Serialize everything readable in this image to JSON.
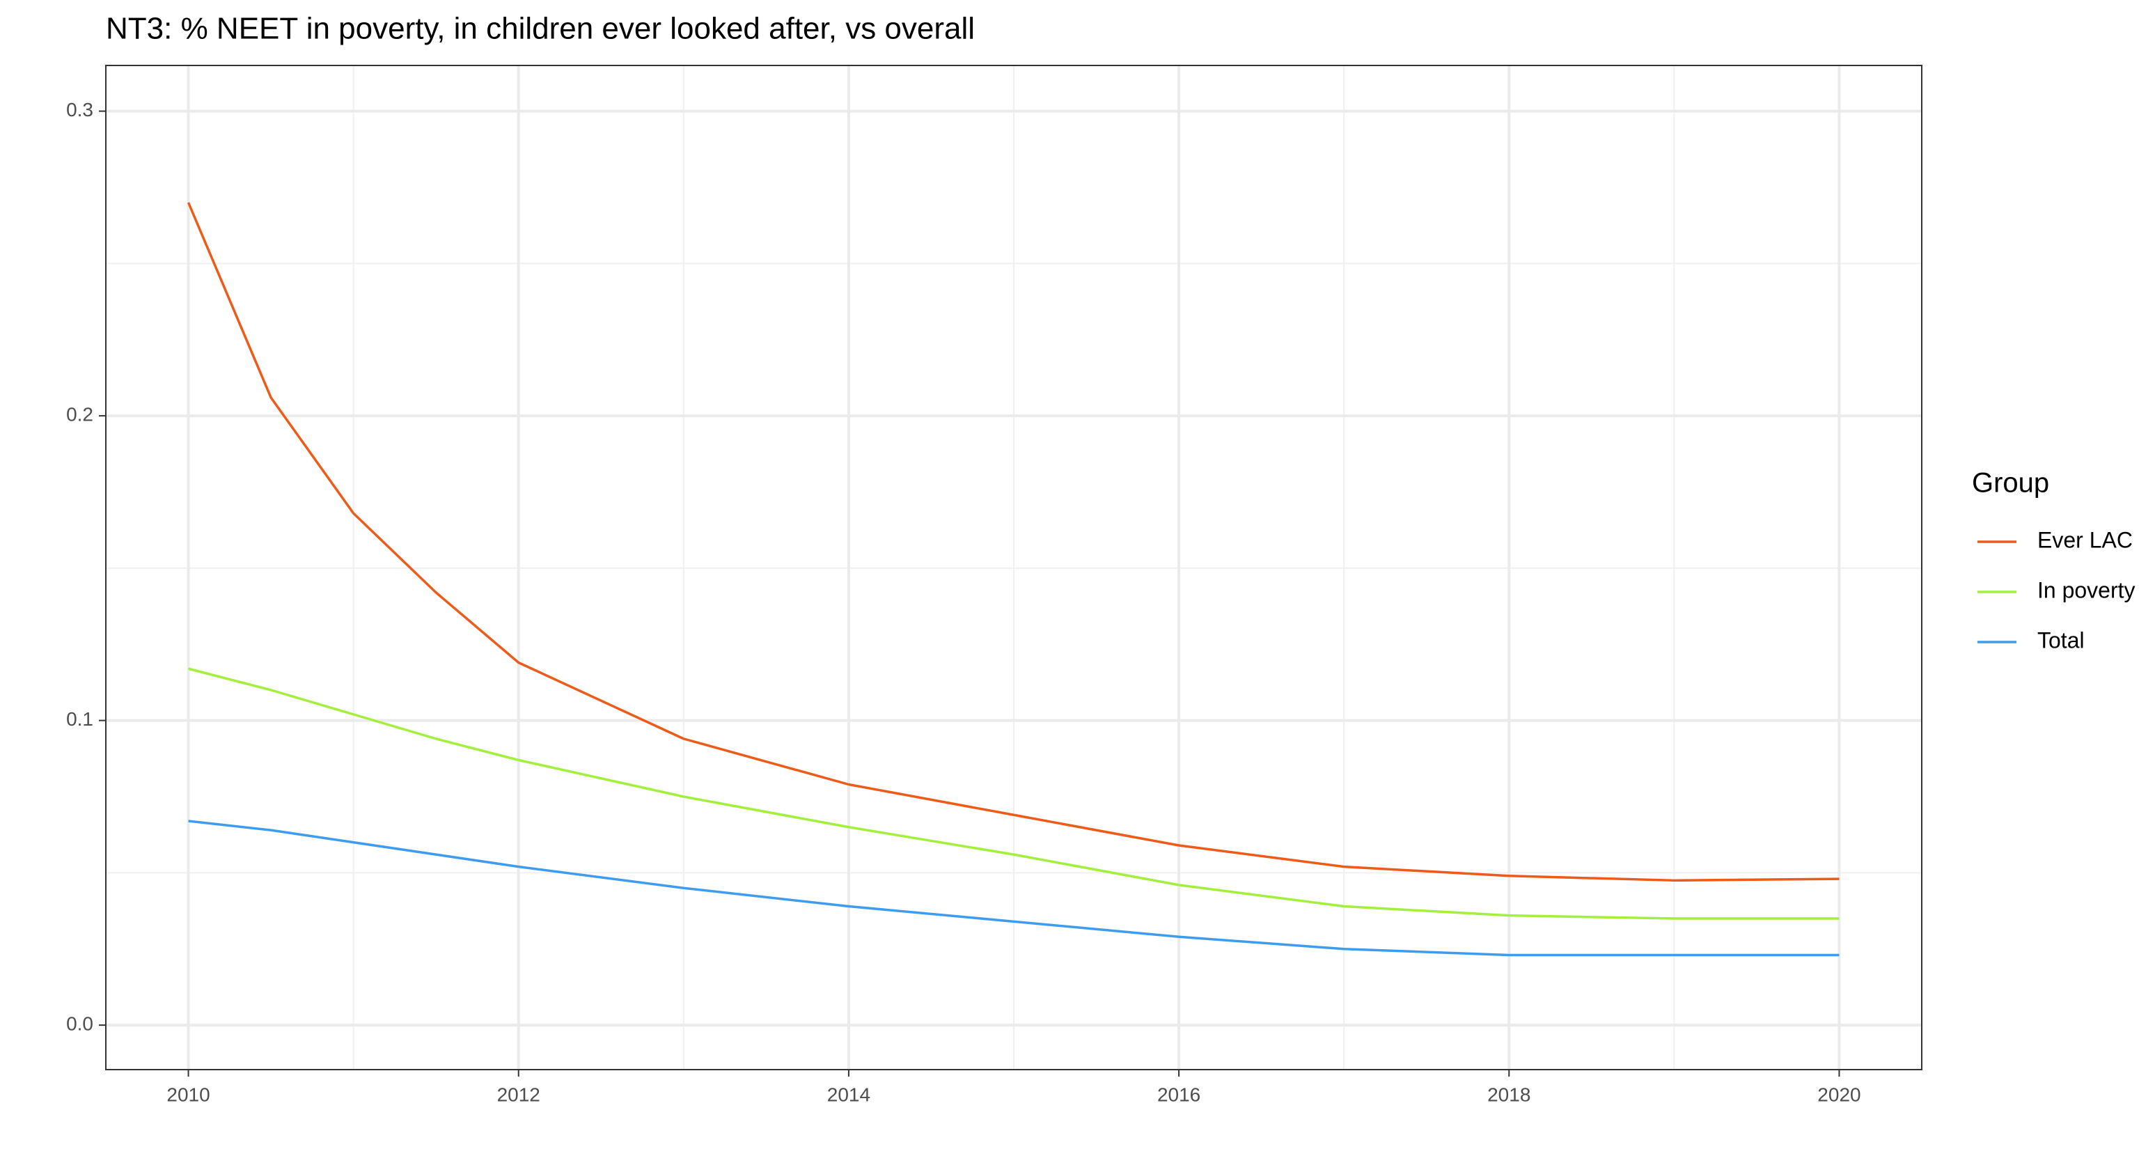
{
  "chart_data": {
    "type": "line",
    "title": "NT3: % NEET in poverty, in children ever looked after, vs overall",
    "x": [
      2010,
      2010.5,
      2011,
      2011.5,
      2012,
      2013,
      2014,
      2015,
      2016,
      2017,
      2018,
      2019,
      2020
    ],
    "series": [
      {
        "name": "Ever LAC",
        "color": "#ee5a17",
        "values": [
          0.27,
          0.206,
          0.168,
          0.142,
          0.119,
          0.094,
          0.079,
          0.069,
          0.059,
          0.052,
          0.049,
          0.0475,
          0.048
        ]
      },
      {
        "name": "In poverty",
        "color": "#a3f03c",
        "values": [
          0.117,
          0.11,
          0.102,
          0.094,
          0.087,
          0.075,
          0.065,
          0.056,
          0.046,
          0.039,
          0.036,
          0.035,
          0.035
        ]
      },
      {
        "name": "Total",
        "color": "#3d9cf0",
        "values": [
          0.067,
          0.064,
          0.06,
          0.056,
          0.052,
          0.045,
          0.039,
          0.034,
          0.029,
          0.025,
          0.023,
          0.023,
          0.023
        ]
      }
    ],
    "xlim": [
      2009.5,
      2020.5
    ],
    "xticks": [
      2010,
      2012,
      2014,
      2016,
      2018,
      2020
    ],
    "ylim": [
      -0.0146,
      0.315
    ],
    "yticks": [
      {
        "value": 0,
        "label": "0.0"
      },
      0.1,
      0.2,
      0.3
    ],
    "grid": true,
    "legend_title": "Group",
    "legend_position": "right"
  }
}
